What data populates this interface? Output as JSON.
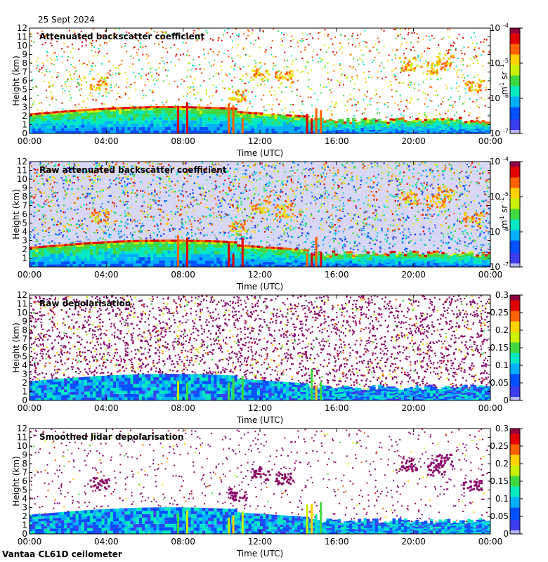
{
  "date_label": "25 Sept 2024",
  "footer_label": "Vantaa CL61D ceilometer",
  "colors": {
    "jet": [
      "#b8b8f0",
      "#3c3cf0",
      "#0050ff",
      "#00b0ff",
      "#00e8c0",
      "#40d840",
      "#c8f000",
      "#ffd000",
      "#ff6000",
      "#e00000",
      "#900040"
    ],
    "magenta_noise": "#8a0b6a"
  },
  "chart_data": [
    {
      "type": "heatmap",
      "title": "Attenuated backscatter coefficient",
      "xlabel": "Time (UTC)",
      "ylabel": "Height (km)",
      "x_ticks": [
        "00:00",
        "04:00",
        "08:00",
        "12:00",
        "16:00",
        "20:00",
        "00:00"
      ],
      "y_ticks": [
        "0",
        "1",
        "2",
        "3",
        "4",
        "5",
        "6",
        "7",
        "8",
        "9",
        "10",
        "11",
        "12"
      ],
      "ylim": [
        0,
        12
      ],
      "colorbar": {
        "scale": "log",
        "ticks": [
          "10",
          "10",
          "10",
          "10"
        ],
        "exponents": [
          "-4",
          "-5",
          "-6",
          "-7"
        ],
        "unit": "m",
        "unit_exp": "-1",
        "unit2": "sr",
        "unit2_exp": "-1"
      }
    },
    {
      "type": "heatmap",
      "title": "Raw attenuated backscatter coefficient",
      "xlabel": "Time (UTC)",
      "ylabel": "Height (km)",
      "x_ticks": [
        "00:00",
        "04:00",
        "08:00",
        "12:00",
        "16:00",
        "20:00",
        "00:00"
      ],
      "y_ticks": [
        "1",
        "2",
        "3",
        "4",
        "5",
        "6",
        "7",
        "8",
        "9",
        "10",
        "11",
        "12"
      ],
      "ylim": [
        0,
        12
      ],
      "colorbar": {
        "scale": "log",
        "ticks": [
          "10",
          "10",
          "10",
          "10"
        ],
        "exponents": [
          "-4",
          "-5",
          "-6",
          "-7"
        ],
        "unit": "m",
        "unit_exp": "-1",
        "unit2": "sr",
        "unit2_exp": "-1"
      }
    },
    {
      "type": "heatmap",
      "title": "Raw depolarisation",
      "xlabel": "Time (UTC)",
      "ylabel": "Height (km)",
      "x_ticks": [
        "00:00",
        "04:00",
        "08:00",
        "12:00",
        "16:00",
        "20:00",
        "00:00"
      ],
      "y_ticks": [
        "0",
        "1",
        "2",
        "3",
        "4",
        "5",
        "6",
        "7",
        "8",
        "9",
        "10",
        "11",
        "12"
      ],
      "ylim": [
        0,
        12
      ],
      "colorbar": {
        "scale": "linear",
        "ticks": [
          "0.3",
          "0.25",
          "0.2",
          "0.15",
          "0.1",
          "0.05",
          "0"
        ]
      }
    },
    {
      "type": "heatmap",
      "title": "Smoothed lidar depolarisation",
      "xlabel": "Time (UTC)",
      "ylabel": "Height (km)",
      "x_ticks": [
        "00:00",
        "04:00",
        "08:00",
        "12:00",
        "16:00",
        "20:00",
        "00:00"
      ],
      "y_ticks": [
        "0",
        "1",
        "2",
        "3",
        "4",
        "5",
        "6",
        "7",
        "8",
        "9",
        "10",
        "11",
        "12"
      ],
      "ylim": [
        0,
        12
      ],
      "colorbar": {
        "scale": "linear",
        "ticks": [
          "0.3",
          "0.25",
          "0.2",
          "0.15",
          "0.1",
          "0.05",
          "0"
        ]
      }
    }
  ]
}
